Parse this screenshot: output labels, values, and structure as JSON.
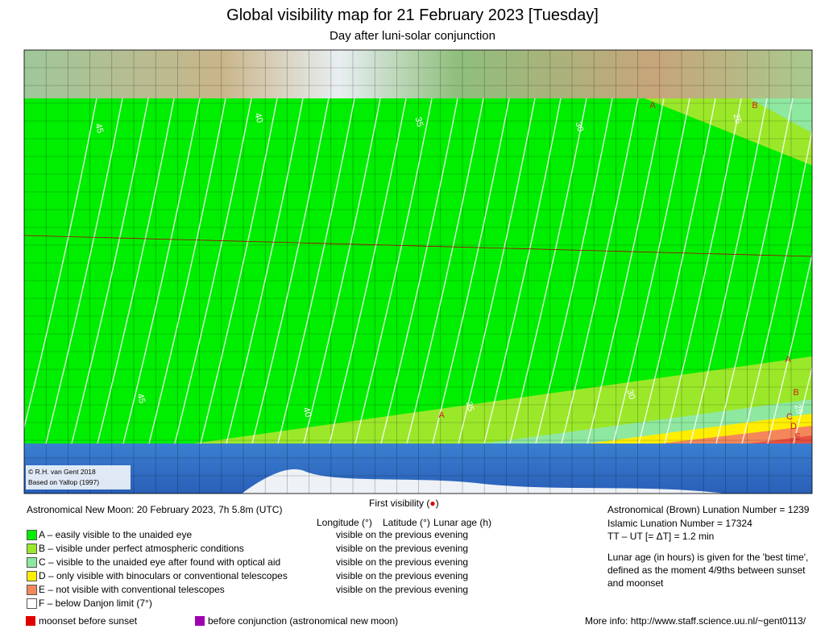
{
  "header": {
    "title": "Global visibility map for 21 February 2023 [Tuesday]",
    "subtitle": "Day after luni-solar conjunction"
  },
  "map": {
    "contour_labels": [
      "45",
      "40",
      "35",
      "30",
      "25"
    ],
    "zone_letters": [
      "A",
      "B",
      "C",
      "D",
      "E"
    ],
    "credit": [
      "© R.H. van Gent 2018",
      "Based on Yallop (1997)"
    ]
  },
  "first_visibility": {
    "prefix": "First visibility (",
    "symbol": "●",
    "suffix": ")",
    "symbol_color": "#e00000"
  },
  "new_moon": "Astronomical New Moon: 20 February 2023, 7h 5.8m (UTC)",
  "columns": [
    "Longitude (°)",
    "Latitude (°)",
    "Lunar age (h)"
  ],
  "legend": [
    {
      "label": "A – easily visible to the unaided eye",
      "color": "#00ee00",
      "status": "visible on the previous evening"
    },
    {
      "label": "B – visible under perfect atmospheric conditions",
      "color": "#9be82a",
      "status": "visible on the previous evening"
    },
    {
      "label": "C – visible to the unaided eye after found with optical aid",
      "color": "#8ee8a0",
      "status": "visible on the previous evening"
    },
    {
      "label": "D – only visible with binoculars or conventional telescopes",
      "color": "#ffee00",
      "status": "visible on the previous evening"
    },
    {
      "label": "E – not visible with conventional telescopes",
      "color": "#f4875a",
      "status": "visible on the previous evening"
    },
    {
      "label": "F – below Danjon limit (7°)",
      "color": "#ffffff"
    }
  ],
  "info": [
    "Astronomical (Brown) Lunation Number = 1239",
    "Islamic Lunation Number = 17324",
    "TT – UT [= ΔT] = 1.2 min"
  ],
  "note": [
    "Lunar age (in hours) is given for the 'best time',",
    "defined as the moment 4/9ths between sunset",
    "and moonset"
  ],
  "footer": [
    {
      "label": "moonset before sunset",
      "color": "#e00000"
    },
    {
      "label": "before conjunction (astronomical new moon)",
      "color": "#a000b0"
    }
  ],
  "more_info": "More info: http://www.staff.science.uu.nl/~gent0113/"
}
